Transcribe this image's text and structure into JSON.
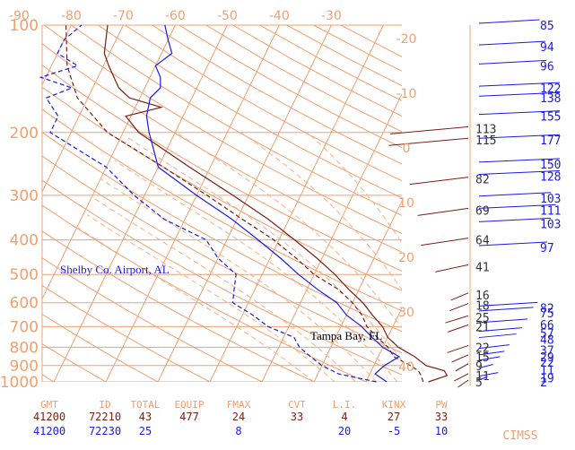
{
  "colors": {
    "grid": "#f0a070",
    "grid_dash": "#f4b08a",
    "grid_text": "#f0a070",
    "sounding1": "#7a1f14",
    "sounding2": "#1a1ae6",
    "black": "#000000"
  },
  "chart_data": {
    "type": "skew-t log-p sounding",
    "title": "",
    "temp_axis_labels": [
      "-90",
      "-80",
      "-70",
      "-60",
      "-50",
      "-40",
      "-30"
    ],
    "temp_axis_values": [
      -90,
      -80,
      -70,
      -60,
      -50,
      -40,
      -30
    ],
    "skew_temp_labels": [
      "-20",
      "-10",
      "0",
      "10",
      "20",
      "30",
      "40"
    ],
    "skew_temp_values": [
      -20,
      -10,
      0,
      10,
      20,
      30,
      40
    ],
    "pressure_labels": [
      "100",
      "200",
      "300",
      "400",
      "500",
      "600",
      "700",
      "800",
      "900",
      "1000"
    ],
    "pressure_values": [
      100,
      200,
      300,
      400,
      500,
      600,
      700,
      800,
      900,
      1000
    ],
    "station_labels": [
      {
        "text": "Shelby Co. Airport, AL",
        "series": 1
      },
      {
        "text": "Tampa Bay, FL",
        "series": 0
      }
    ],
    "series": [
      {
        "name": "Tampa Bay, FL",
        "id": "72210",
        "temperature": [
          [
            1000,
            22
          ],
          [
            960,
            25
          ],
          [
            930,
            24
          ],
          [
            900,
            20
          ],
          [
            850,
            17
          ],
          [
            800,
            13
          ],
          [
            750,
            10
          ],
          [
            700,
            8
          ],
          [
            650,
            5
          ],
          [
            600,
            2
          ],
          [
            550,
            -2
          ],
          [
            500,
            -6
          ],
          [
            450,
            -11
          ],
          [
            400,
            -17
          ],
          [
            350,
            -24
          ],
          [
            300,
            -33
          ],
          [
            250,
            -44
          ],
          [
            200,
            -57
          ],
          [
            180,
            -61
          ],
          [
            170,
            -55
          ],
          [
            160,
            -62
          ],
          [
            150,
            -65
          ],
          [
            130,
            -69
          ],
          [
            120,
            -71
          ],
          [
            100,
            -73
          ]
        ],
        "dewpoint": [
          [
            1000,
            21
          ],
          [
            960,
            20
          ],
          [
            930,
            19
          ],
          [
            900,
            17
          ],
          [
            850,
            13
          ],
          [
            800,
            11
          ],
          [
            750,
            8
          ],
          [
            700,
            5
          ],
          [
            650,
            3
          ],
          [
            600,
            0
          ],
          [
            550,
            -4
          ],
          [
            500,
            -10
          ],
          [
            450,
            -15
          ],
          [
            400,
            -21
          ],
          [
            350,
            -29
          ],
          [
            300,
            -38
          ],
          [
            250,
            -49
          ],
          [
            200,
            -63
          ],
          [
            160,
            -72
          ],
          [
            130,
            -77
          ],
          [
            100,
            -81
          ]
        ],
        "wind_speed_labels": [
          "5",
          "11",
          "9",
          "15",
          "22",
          "21",
          "25",
          "18",
          "16",
          "41",
          "64",
          "69",
          "82",
          "115",
          "113"
        ],
        "wind_label_pressures": [
          1000,
          960,
          900,
          850,
          800,
          700,
          660,
          610,
          570,
          475,
          400,
          330,
          270,
          210,
          195
        ]
      },
      {
        "name": "Shelby Co. Airport, AL",
        "id": "72230",
        "temperature": [
          [
            1000,
            14
          ],
          [
            950,
            11
          ],
          [
            900,
            12
          ],
          [
            850,
            14
          ],
          [
            800,
            10
          ],
          [
            750,
            7
          ],
          [
            700,
            4
          ],
          [
            650,
            0
          ],
          [
            600,
            -3
          ],
          [
            550,
            -8
          ],
          [
            500,
            -13
          ],
          [
            450,
            -18
          ],
          [
            400,
            -24
          ],
          [
            350,
            -31
          ],
          [
            300,
            -40
          ],
          [
            250,
            -50
          ],
          [
            200,
            -55
          ],
          [
            180,
            -57
          ],
          [
            160,
            -58
          ],
          [
            150,
            -57
          ],
          [
            140,
            -58
          ],
          [
            130,
            -60
          ],
          [
            120,
            -58
          ],
          [
            110,
            -60
          ],
          [
            100,
            -62
          ]
        ],
        "dewpoint": [
          [
            1000,
            12
          ],
          [
            950,
            4
          ],
          [
            900,
            0
          ],
          [
            850,
            -3
          ],
          [
            800,
            -6
          ],
          [
            750,
            -8
          ],
          [
            700,
            -14
          ],
          [
            650,
            -18
          ],
          [
            600,
            -23
          ],
          [
            550,
            -24
          ],
          [
            500,
            -25
          ],
          [
            450,
            -30
          ],
          [
            400,
            -34
          ],
          [
            350,
            -44
          ],
          [
            300,
            -52
          ],
          [
            250,
            -60
          ],
          [
            200,
            -74
          ],
          [
            180,
            -74
          ],
          [
            160,
            -78
          ],
          [
            150,
            -74
          ],
          [
            140,
            -81
          ],
          [
            130,
            -75
          ],
          [
            120,
            -80
          ],
          [
            110,
            -80
          ],
          [
            100,
            -78
          ]
        ],
        "wind_speed_labels": [
          "2",
          "19",
          "11",
          "22",
          "29",
          "37",
          "48",
          "57",
          "66",
          "75",
          "82",
          "97",
          "103",
          "111",
          "103",
          "128",
          "150",
          "177",
          "155",
          "138",
          "122",
          "96",
          "94",
          "85"
        ],
        "wind_label_pressures": [
          1000,
          975,
          925,
          880,
          850,
          815,
          760,
          730,
          690,
          640,
          620,
          420,
          360,
          330,
          305,
          265,
          245,
          210,
          180,
          160,
          150,
          130,
          115,
          100
        ]
      }
    ],
    "indices": {
      "headers": [
        "GMT",
        "ID",
        "TOTAL",
        "EQUIP",
        "FMAX",
        "CVT",
        "L.I.",
        "KINX",
        "PW"
      ],
      "rows": [
        [
          "41200",
          "72210",
          "43",
          "477",
          "24",
          "33",
          "4",
          "27",
          "33"
        ],
        [
          "41200",
          "72230",
          "25",
          "",
          "8",
          "",
          "20",
          "-5",
          "10"
        ]
      ]
    },
    "credit": "CIMSS"
  }
}
